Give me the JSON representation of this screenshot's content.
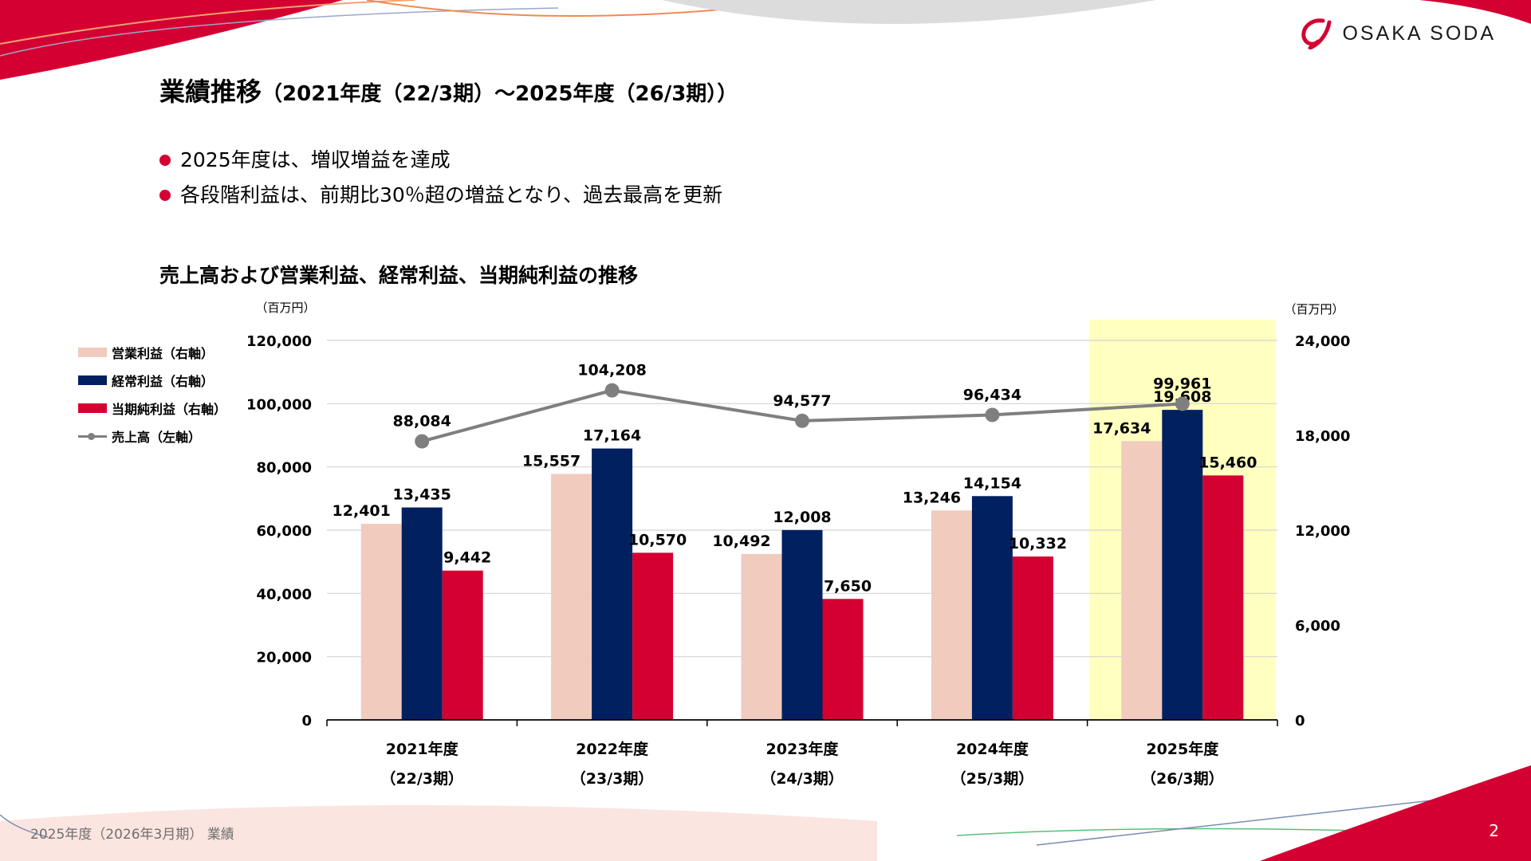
{
  "brand": {
    "logo_text": "OSAKA SODA",
    "colors": {
      "accent_red": "#d50032",
      "navy": "#002060",
      "beige": "#f0cbbe",
      "gray": "#7f7f7f",
      "highlight": "#ffffc0"
    }
  },
  "title": {
    "main": "業績推移",
    "sub": "（2021年度（22/3期）～2025年度（26/3期））"
  },
  "bullets": [
    "2025年度は、増収増益を達成",
    "各段階利益は、前期比30％超の増益となり、過去最高を更新"
  ],
  "chart_title": "売上高および営業利益、経常利益、当期純利益の推移",
  "legend": {
    "operating": "営業利益（右軸）",
    "ordinary": "経常利益（右軸）",
    "net": "当期純利益（右軸）",
    "sales": "売上高（左軸）"
  },
  "chart_data": {
    "type": "bar",
    "categories": [
      [
        "2021年度",
        "（22/3期）"
      ],
      [
        "2022年度",
        "（23/3期）"
      ],
      [
        "2023年度",
        "（24/3期）"
      ],
      [
        "2024年度",
        "（25/3期）"
      ],
      [
        "2025年度",
        "（26/3期）"
      ]
    ],
    "series": [
      {
        "name": "営業利益（右軸）",
        "type": "bar",
        "axis": "right",
        "color": "#f0cbbe",
        "values": [
          12401,
          15557,
          10492,
          13246,
          17634
        ]
      },
      {
        "name": "経常利益（右軸）",
        "type": "bar",
        "axis": "right",
        "color": "#002060",
        "values": [
          13435,
          17164,
          12008,
          14154,
          19608
        ]
      },
      {
        "name": "当期純利益（右軸）",
        "type": "bar",
        "axis": "right",
        "color": "#d50032",
        "values": [
          9442,
          10570,
          7650,
          10332,
          15460
        ]
      },
      {
        "name": "売上高（左軸）",
        "type": "line",
        "axis": "left",
        "color": "#7f7f7f",
        "values": [
          88084,
          104208,
          94577,
          96434,
          99961
        ]
      }
    ],
    "y_left": {
      "unit": "（百万円）",
      "ylim": [
        0,
        120000
      ],
      "ticks": [
        0,
        20000,
        40000,
        60000,
        80000,
        100000,
        120000
      ]
    },
    "y_right": {
      "unit": "（百万円）",
      "ylim": [
        0,
        24000
      ],
      "ticks": [
        0,
        6000,
        12000,
        18000,
        24000
      ]
    },
    "highlight_category": 4,
    "grid": true,
    "legend_position": "left"
  },
  "footer": "2025年度（2026年3月期） 業績",
  "page_number": "2"
}
